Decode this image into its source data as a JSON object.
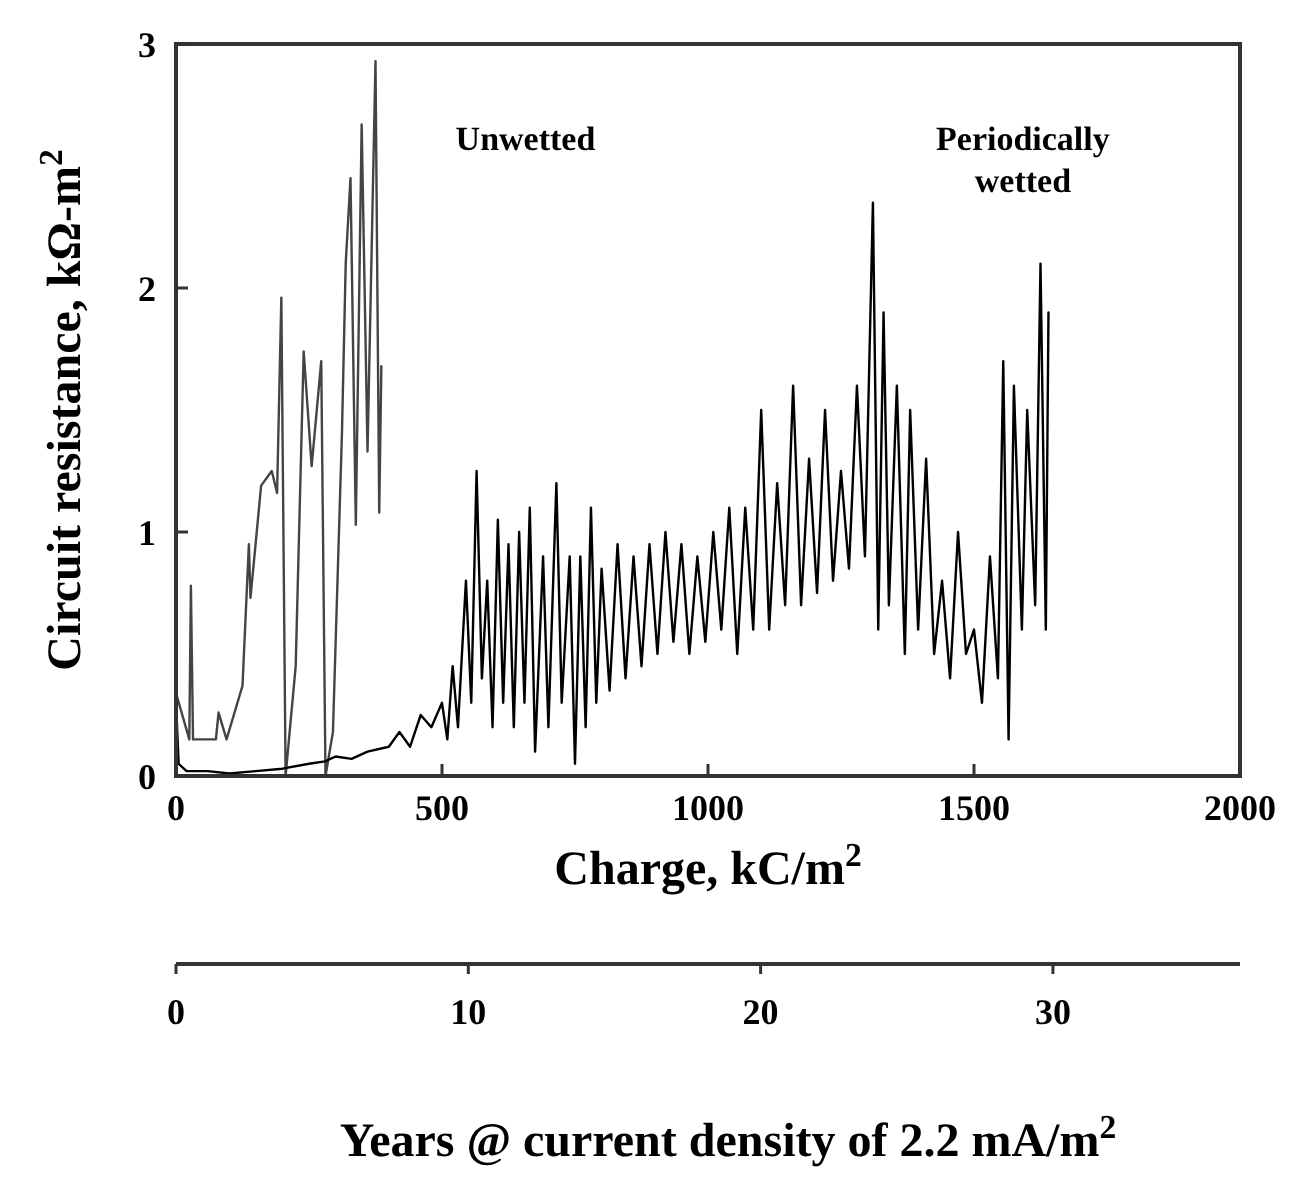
{
  "chart_data": {
    "type": "line",
    "xlabel": "Charge, kC/m$^{2}$",
    "ylabel": "Circuit resistance, kΩ-m$^{2}$",
    "x2label": "Years @ current density of 2.2 mA/m$^{2}$",
    "xlim": [
      0,
      2000
    ],
    "xticks": [
      0,
      500,
      1000,
      1500,
      2000
    ],
    "ylim": [
      0,
      3
    ],
    "yticks": [
      0,
      1,
      2,
      3
    ],
    "x2lim": [
      0,
      36.4
    ],
    "x2ticks": [
      0,
      10,
      20,
      30
    ],
    "grid": false,
    "line_style": "solid",
    "series": [
      {
        "name": "Unwetted",
        "color": "#444444",
        "x": [
          0,
          25,
          28,
          32,
          50,
          75,
          80,
          95,
          125,
          137,
          140,
          160,
          180,
          190,
          198,
          206,
          225,
          240,
          255,
          273,
          281,
          295,
          312,
          319,
          328,
          338,
          349,
          360,
          375,
          382,
          386
        ],
        "values": [
          0.34,
          0.15,
          0.78,
          0.15,
          0.15,
          0.15,
          0.26,
          0.15,
          0.37,
          0.95,
          0.73,
          1.19,
          1.25,
          1.16,
          1.96,
          0,
          0.45,
          1.74,
          1.27,
          1.7,
          0,
          0.18,
          1.41,
          2.1,
          2.45,
          1.03,
          2.67,
          1.33,
          2.93,
          1.08,
          1.68
        ]
      },
      {
        "name": "Periodically wetted",
        "color": "#000000",
        "x": [
          0,
          5,
          20,
          60,
          100,
          150,
          200,
          250,
          280,
          300,
          330,
          360,
          400,
          420,
          440,
          460,
          480,
          500,
          510,
          520,
          530,
          545,
          555,
          565,
          575,
          585,
          595,
          605,
          615,
          625,
          635,
          645,
          655,
          665,
          675,
          690,
          700,
          715,
          725,
          740,
          750,
          760,
          770,
          780,
          790,
          800,
          815,
          830,
          845,
          860,
          875,
          890,
          905,
          920,
          935,
          950,
          965,
          980,
          995,
          1010,
          1025,
          1040,
          1055,
          1070,
          1085,
          1100,
          1115,
          1130,
          1145,
          1160,
          1175,
          1190,
          1205,
          1220,
          1235,
          1250,
          1265,
          1280,
          1295,
          1310,
          1320,
          1330,
          1340,
          1355,
          1370,
          1380,
          1395,
          1410,
          1425,
          1440,
          1455,
          1470,
          1485,
          1500,
          1515,
          1530,
          1545,
          1555,
          1565,
          1575,
          1590,
          1600,
          1615,
          1625,
          1635,
          1640
        ],
        "values": [
          0.3,
          0.05,
          0.02,
          0.02,
          0.01,
          0.02,
          0.03,
          0.05,
          0.06,
          0.08,
          0.07,
          0.1,
          0.12,
          0.18,
          0.12,
          0.25,
          0.2,
          0.3,
          0.15,
          0.45,
          0.2,
          0.8,
          0.3,
          1.25,
          0.4,
          0.8,
          0.2,
          1.05,
          0.3,
          0.95,
          0.2,
          1.0,
          0.3,
          1.1,
          0.1,
          0.9,
          0.2,
          1.2,
          0.3,
          0.9,
          0.05,
          0.9,
          0.2,
          1.1,
          0.3,
          0.85,
          0.35,
          0.95,
          0.4,
          0.9,
          0.45,
          0.95,
          0.5,
          1.0,
          0.55,
          0.95,
          0.5,
          0.9,
          0.55,
          1.0,
          0.6,
          1.1,
          0.5,
          1.1,
          0.6,
          1.5,
          0.6,
          1.2,
          0.7,
          1.6,
          0.7,
          1.3,
          0.75,
          1.5,
          0.8,
          1.25,
          0.85,
          1.6,
          0.9,
          2.35,
          0.6,
          1.9,
          0.7,
          1.6,
          0.5,
          1.5,
          0.6,
          1.3,
          0.5,
          0.8,
          0.4,
          1.0,
          0.5,
          0.6,
          0.3,
          0.9,
          0.4,
          1.7,
          0.15,
          1.6,
          0.6,
          1.5,
          0.7,
          2.1,
          0.6,
          1.9
        ]
      }
    ]
  }
}
